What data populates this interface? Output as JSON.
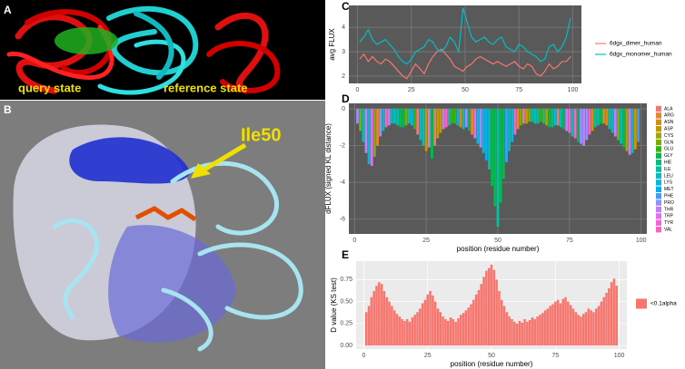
{
  "figure": {
    "panel_labels": [
      "A",
      "B",
      "C",
      "D",
      "E"
    ],
    "query_state": "query state",
    "reference_state": "reference state",
    "arrow_label": "Ile50"
  },
  "chart_data": [
    {
      "type": "line",
      "background": "#595959",
      "grid_color": "#7a7a7a",
      "ylabel": "avg FLUX",
      "legend": "right",
      "x": [
        1,
        3,
        5,
        7,
        9,
        11,
        13,
        15,
        17,
        19,
        21,
        23,
        25,
        27,
        29,
        31,
        33,
        35,
        37,
        39,
        41,
        43,
        45,
        47,
        49,
        51,
        53,
        55,
        57,
        59,
        61,
        63,
        65,
        67,
        69,
        71,
        73,
        75,
        77,
        79,
        81,
        83,
        85,
        87,
        89,
        91,
        93,
        95,
        97,
        99
      ],
      "series": [
        {
          "name": "6dgx_dimer_human",
          "color": "#f8766d",
          "values": [
            2.7,
            2.9,
            2.6,
            2.8,
            2.6,
            2.5,
            2.7,
            2.6,
            2.4,
            2.2,
            2.0,
            1.9,
            2.2,
            2.5,
            2.3,
            2.1,
            2.5,
            2.8,
            3.0,
            3.1,
            2.9,
            2.7,
            2.4,
            2.3,
            2.2,
            2.4,
            2.5,
            2.7,
            2.8,
            2.7,
            2.6,
            2.5,
            2.6,
            2.5,
            2.4,
            2.5,
            2.6,
            2.4,
            2.3,
            2.5,
            2.4,
            2.1,
            2.0,
            2.2,
            2.5,
            2.3,
            2.4,
            2.6,
            2.6,
            2.8
          ]
        },
        {
          "name": "6dgx_monomer_human",
          "color": "#00bfc4",
          "values": [
            3.4,
            3.6,
            3.9,
            3.5,
            3.3,
            3.4,
            3.5,
            3.3,
            3.1,
            2.8,
            2.6,
            2.5,
            2.7,
            3.0,
            3.1,
            3.2,
            3.5,
            3.4,
            3.1,
            3.0,
            3.2,
            3.6,
            3.4,
            3.0,
            4.8,
            4.2,
            3.6,
            3.4,
            3.5,
            3.6,
            3.4,
            3.3,
            3.5,
            3.6,
            3.2,
            3.1,
            3.0,
            3.3,
            3.2,
            3.0,
            2.9,
            2.8,
            2.6,
            2.7,
            3.2,
            3.3,
            3.0,
            3.2,
            3.6,
            4.4
          ]
        }
      ],
      "xlim": [
        -4,
        104
      ],
      "xticks": [
        0,
        25,
        50,
        75,
        100
      ],
      "ylim": [
        1.7,
        4.9
      ],
      "yticks": [
        2,
        3,
        4
      ],
      "grid": true
    },
    {
      "type": "bar",
      "background": "#595959",
      "grid_color": "#7a7a7a",
      "xlabel": "position (residue number)",
      "ylabel": "dFLUX (signed KL distance)",
      "legend": "right",
      "series": [
        {
          "name": "ALA",
          "color": "#f8766d",
          "x": [
            22,
            28,
            71
          ],
          "values": [
            -1.4,
            -2.0,
            -0.9
          ]
        },
        {
          "name": "ARG",
          "color": "#ea8331",
          "x": [
            8,
            41,
            57,
            87
          ],
          "values": [
            -2.0,
            -1.4,
            -1.1,
            -0.8
          ]
        },
        {
          "name": "ASN",
          "color": "#d89000",
          "x": [
            37,
            83,
            88,
            98
          ],
          "values": [
            -1.0,
            -1.2,
            -0.9,
            -2.2
          ]
        },
        {
          "name": "ASP",
          "color": "#c09b00",
          "x": [
            25,
            29,
            30,
            60
          ],
          "values": [
            -2.3,
            -1.6,
            -1.3,
            -0.8
          ]
        },
        {
          "name": "CYS",
          "color": "#a3a500",
          "x": [
            67,
            95
          ],
          "values": [
            -0.9,
            -2.3
          ]
        },
        {
          "name": "GLN",
          "color": "#7cae00",
          "x": [
            2,
            7,
            18,
            58,
            61,
            92
          ],
          "values": [
            -1.2,
            -2.6,
            -0.9,
            -0.9,
            -0.7,
            -1.7
          ]
        },
        {
          "name": "GLU",
          "color": "#39b600",
          "x": [
            21,
            34,
            35,
            65
          ],
          "values": [
            -1.1,
            -0.8,
            -0.8,
            -0.7
          ]
        },
        {
          "name": "GLY",
          "color": "#00bb4e",
          "x": [
            16,
            17,
            27,
            40,
            48,
            49,
            51,
            52,
            68,
            73,
            78,
            86,
            94
          ],
          "values": [
            -1.0,
            -1.0,
            -2.7,
            -1.2,
            -4.2,
            -5.3,
            -5.1,
            -3.8,
            -1.0,
            -1.1,
            -1.8,
            -0.8,
            -2.1
          ]
        },
        {
          "name": "HIE",
          "color": "#00bf7d",
          "x": [
            69
          ],
          "values": [
            -1.0
          ]
        },
        {
          "name": "ILE",
          "color": "#00c1a3",
          "x": [
            3,
            13,
            15,
            47,
            50,
            54,
            62,
            64,
            66,
            72,
            84,
            85,
            93
          ],
          "values": [
            -1.8,
            -0.8,
            -0.9,
            -3.3,
            -6.4,
            -2.3,
            -0.7,
            -0.8,
            -0.8,
            -1.0,
            -1.0,
            -0.9,
            -1.9
          ]
        },
        {
          "name": "LEU",
          "color": "#00bfc4",
          "x": [
            5,
            10,
            19,
            23,
            24,
            33,
            38,
            63,
            76,
            89,
            90,
            97
          ],
          "values": [
            -3.0,
            -1.2,
            -0.8,
            -1.7,
            -2.0,
            -0.9,
            -1.1,
            -0.8,
            -1.5,
            -1.1,
            -1.3,
            -2.4
          ]
        },
        {
          "name": "LYS",
          "color": "#00bae0",
          "x": [
            14,
            20,
            43,
            45,
            55,
            70
          ],
          "values": [
            -0.8,
            -0.9,
            -1.9,
            -2.4,
            -1.8,
            -0.9
          ]
        },
        {
          "name": "MET",
          "color": "#00b0f6",
          "x": [
            36,
            46
          ],
          "values": [
            -0.9,
            -2.8
          ]
        },
        {
          "name": "PHE",
          "color": "#35a2ff",
          "x": [
            53,
            99
          ],
          "values": [
            -2.9,
            -1.8
          ]
        },
        {
          "name": "PRO",
          "color": "#9590ff",
          "x": [
            1,
            9,
            39,
            44,
            79,
            81
          ],
          "values": [
            -0.8,
            -1.5,
            -1.0,
            -2.1,
            -1.9,
            -1.7
          ]
        },
        {
          "name": "THR",
          "color": "#c77cff",
          "x": [
            4,
            12,
            26,
            31,
            74,
            80,
            91,
            96
          ],
          "values": [
            -2.4,
            -0.9,
            -2.1,
            -1.1,
            -1.2,
            -2.0,
            -1.5,
            -2.5
          ]
        },
        {
          "name": "TRP",
          "color": "#e76bf3",
          "x": [
            6,
            42
          ],
          "values": [
            -3.1,
            -1.6
          ]
        },
        {
          "name": "TYR",
          "color": "#fa62db",
          "x": [
            59
          ],
          "values": [
            -0.8
          ]
        },
        {
          "name": "VAL",
          "color": "#ff62bc",
          "x": [
            11,
            32,
            56,
            75,
            77,
            82
          ],
          "values": [
            -1.0,
            -1.0,
            -1.4,
            -1.3,
            -1.6,
            -1.4
          ]
        }
      ],
      "xlim": [
        -2,
        102
      ],
      "xticks": [
        0,
        25,
        50,
        75,
        100
      ],
      "ylim": [
        -6.8,
        0.3
      ],
      "yticks": [
        0,
        -2,
        -4,
        -6
      ],
      "grid": true
    },
    {
      "type": "bar",
      "background": "#ebebeb",
      "grid_color": "#ffffff",
      "xlabel": "position (residue number)",
      "ylabel": "D value (KS test)",
      "legend": "right",
      "x": [
        1,
        2,
        3,
        4,
        5,
        6,
        7,
        8,
        9,
        10,
        11,
        12,
        13,
        14,
        15,
        16,
        17,
        18,
        19,
        20,
        21,
        22,
        23,
        24,
        25,
        26,
        27,
        28,
        29,
        30,
        31,
        32,
        33,
        34,
        35,
        36,
        37,
        38,
        39,
        40,
        41,
        42,
        43,
        44,
        45,
        46,
        47,
        48,
        49,
        50,
        51,
        52,
        53,
        54,
        55,
        56,
        57,
        58,
        59,
        60,
        61,
        62,
        63,
        64,
        65,
        66,
        67,
        68,
        69,
        70,
        71,
        72,
        73,
        74,
        75,
        76,
        77,
        78,
        79,
        80,
        81,
        82,
        83,
        84,
        85,
        86,
        87,
        88,
        89,
        90,
        91,
        92,
        93,
        94,
        95,
        96,
        97,
        98,
        99
      ],
      "series": [
        {
          "name": "<0.1alpha",
          "color": "#f8766d",
          "values": [
            0.38,
            0.45,
            0.55,
            0.62,
            0.68,
            0.72,
            0.7,
            0.62,
            0.55,
            0.5,
            0.45,
            0.4,
            0.36,
            0.33,
            0.3,
            0.28,
            0.3,
            0.27,
            0.32,
            0.35,
            0.38,
            0.42,
            0.48,
            0.52,
            0.58,
            0.62,
            0.57,
            0.5,
            0.42,
            0.38,
            0.33,
            0.3,
            0.28,
            0.32,
            0.3,
            0.27,
            0.31,
            0.35,
            0.37,
            0.4,
            0.43,
            0.47,
            0.52,
            0.58,
            0.63,
            0.7,
            0.78,
            0.85,
            0.88,
            0.92,
            0.86,
            0.75,
            0.62,
            0.52,
            0.45,
            0.38,
            0.33,
            0.3,
            0.27,
            0.25,
            0.28,
            0.26,
            0.3,
            0.27,
            0.29,
            0.32,
            0.3,
            0.33,
            0.35,
            0.37,
            0.4,
            0.42,
            0.45,
            0.47,
            0.5,
            0.52,
            0.48,
            0.53,
            0.55,
            0.5,
            0.46,
            0.42,
            0.38,
            0.35,
            0.33,
            0.36,
            0.38,
            0.42,
            0.4,
            0.38,
            0.42,
            0.45,
            0.5,
            0.55,
            0.6,
            0.65,
            0.72,
            0.76,
            0.68
          ]
        }
      ],
      "xlim": [
        -3,
        103
      ],
      "xticks": [
        0,
        25,
        50,
        75,
        100
      ],
      "ylim": [
        -0.04,
        0.96
      ],
      "yticks": [
        {
          "value": 0,
          "label": "0.00"
        },
        {
          "value": 0.25,
          "label": "0.25"
        },
        {
          "value": 0.5,
          "label": "0.50"
        },
        {
          "value": 0.75,
          "label": "0.75"
        }
      ],
      "grid": true
    }
  ]
}
